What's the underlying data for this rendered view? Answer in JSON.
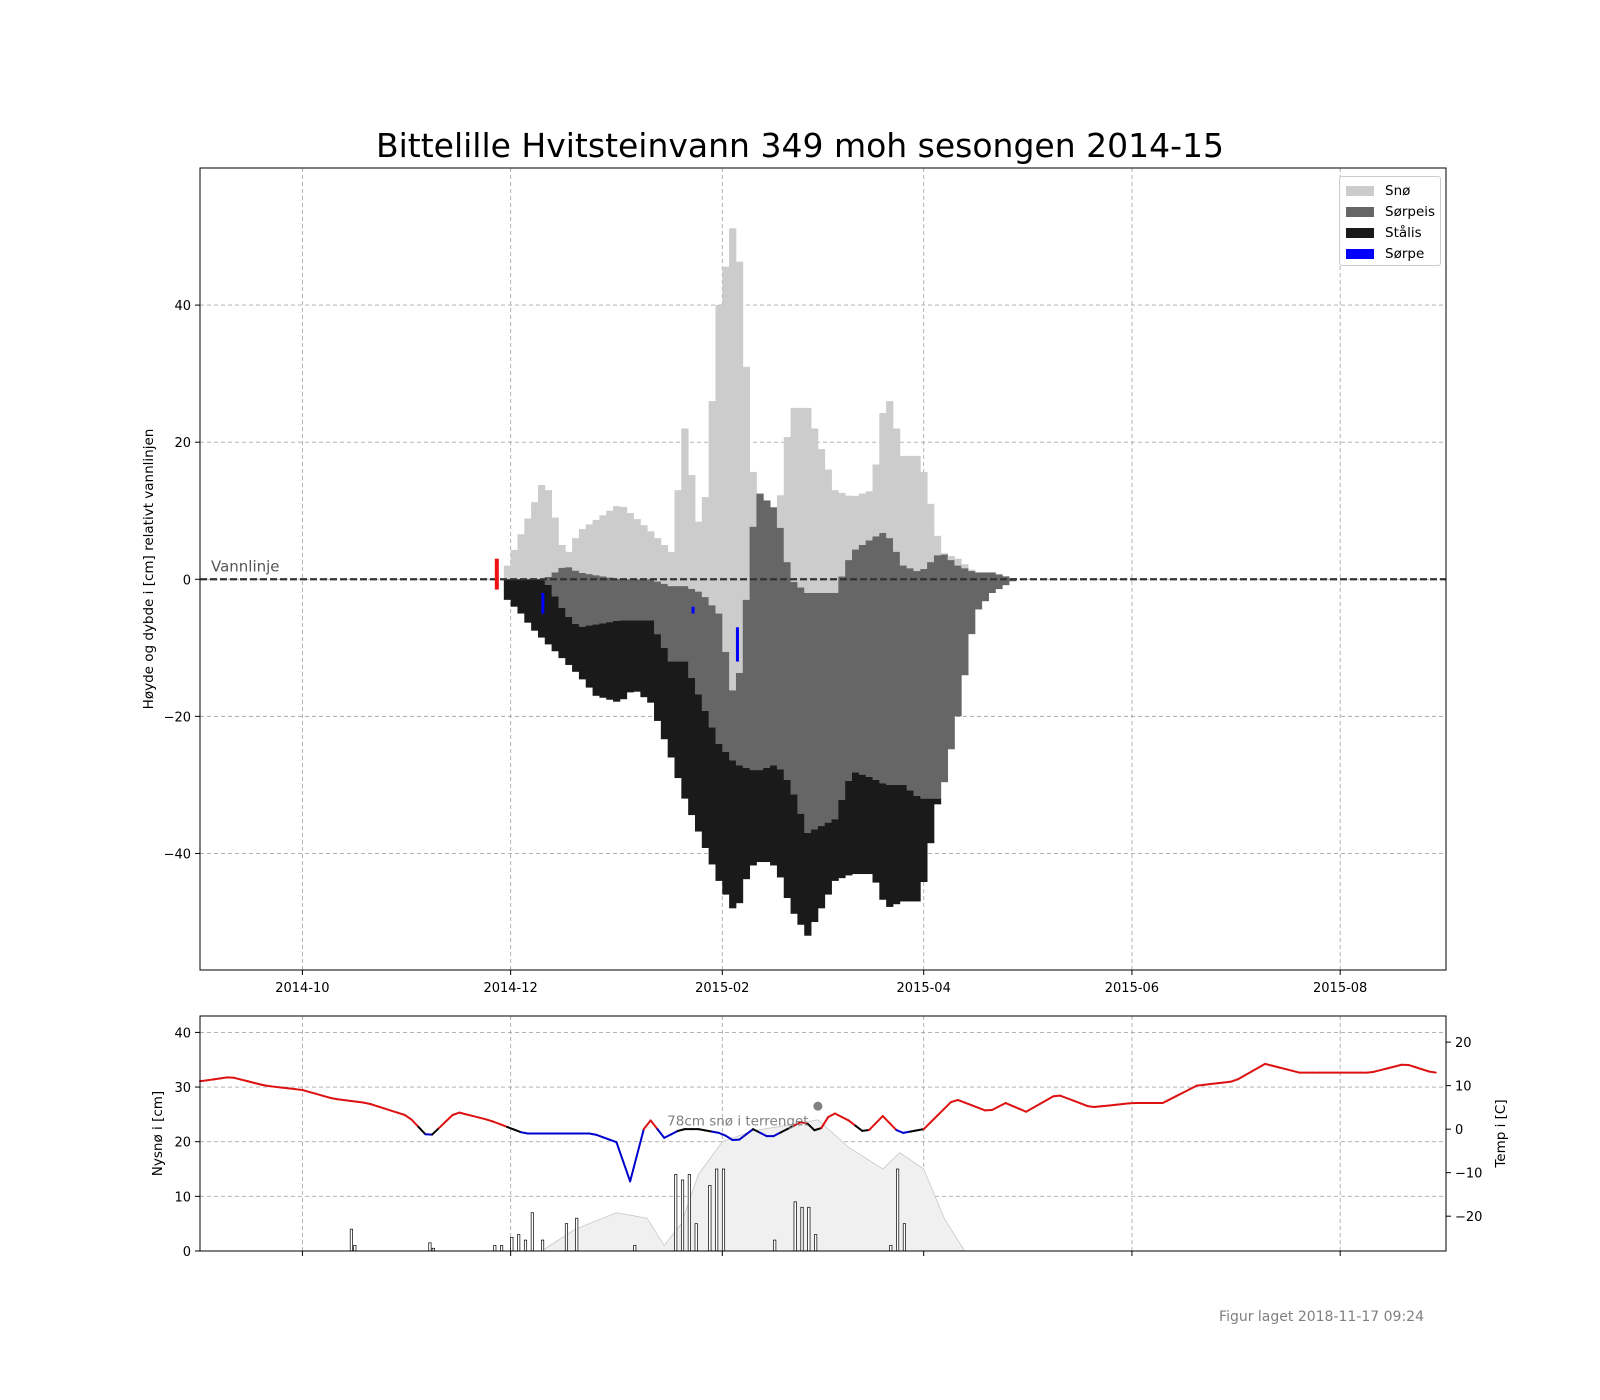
{
  "figure": {
    "title": "Bittelille Hvitsteinvann 349 moh sesongen 2014-15",
    "footer": "Figur laget 2018-11-17 09:24"
  },
  "colors": {
    "snow": "#cccccc",
    "slush_ice": "#666666",
    "black_ice": "#1a1a1a",
    "slush": "#0000ff",
    "water_line": "#333333",
    "temp_warm": "#dd1111",
    "temp_cold": "#0000cc",
    "temp_neutral": "#000000",
    "snow_depth_fill": "#f0f0f0",
    "grid": "#aaaaaa"
  },
  "chart_data": [
    {
      "type": "area",
      "title": "Bittelille Hvitsteinvann 349 moh sesongen 2014-15",
      "ylabel": "Høyde og dybde i [cm] relativt vannlinjen",
      "xlim": [
        "2014-09-01",
        "2015-09-01"
      ],
      "ylim": [
        -57,
        60
      ],
      "x_ticks": [
        "2014-10",
        "2014-12",
        "2015-02",
        "2015-04",
        "2015-06",
        "2015-08"
      ],
      "y_ticks": [
        -40,
        -20,
        0,
        20,
        40
      ],
      "grid": true,
      "legend_position": "top-right",
      "legend": [
        "Snø",
        "Sørpeis",
        "Stålis",
        "Sørpe"
      ],
      "annotation": "Vannlinje",
      "water_line": {
        "y": 0,
        "from": "2014-09-01",
        "to": "2015-09-01"
      },
      "series": [
        {
          "name": "Snø",
          "x": [
            "2014-11-29",
            "2014-12-06",
            "2014-12-10",
            "2014-12-16",
            "2014-12-20",
            "2015-01-01",
            "2015-01-10",
            "2015-01-16",
            "2015-01-20",
            "2015-01-25",
            "2015-01-30",
            "2015-02-04",
            "2015-02-10",
            "2015-02-16",
            "2015-02-20",
            "2015-02-25",
            "2015-03-05",
            "2015-03-10",
            "2015-03-16",
            "2015-03-20",
            "2015-03-25",
            "2015-03-30",
            "2015-04-05",
            "2015-04-10",
            "2015-04-15",
            "2015-04-20",
            "2015-04-27"
          ],
          "top": [
            2,
            10,
            15,
            3,
            7,
            11,
            7,
            4,
            22,
            5,
            40,
            54,
            8,
            8,
            25,
            25,
            13,
            12,
            13,
            28,
            18,
            18,
            4,
            3,
            1,
            1,
            0
          ]
        },
        {
          "name": "Sørpeis",
          "x": [
            "2014-11-29",
            "2014-12-06",
            "2014-12-10",
            "2014-12-16",
            "2014-12-20",
            "2015-01-01",
            "2015-01-10",
            "2015-01-16",
            "2015-01-20",
            "2015-01-25",
            "2015-01-30",
            "2015-02-04",
            "2015-02-10",
            "2015-02-16",
            "2015-02-20",
            "2015-02-25",
            "2015-03-05",
            "2015-03-10",
            "2015-03-16",
            "2015-03-20",
            "2015-03-25",
            "2015-03-30",
            "2015-04-05",
            "2015-04-10",
            "2015-04-15",
            "2015-04-20",
            "2015-04-27"
          ],
          "top": [
            0,
            0,
            0,
            2,
            1,
            0,
            0,
            -1,
            -1,
            -2,
            -5,
            -19,
            13,
            10,
            0,
            -2,
            -2,
            4,
            6,
            7,
            2,
            1,
            4,
            2,
            1,
            1,
            0
          ],
          "bottom": [
            0,
            0,
            0,
            -5,
            -7,
            -6,
            -6,
            -12,
            -12,
            -18,
            -24,
            -27,
            -28,
            -27,
            -30,
            -37,
            -35,
            -28,
            -29,
            -30,
            -30,
            -32,
            -32,
            -20,
            -5,
            -2,
            0
          ]
        },
        {
          "name": "Stålis",
          "x": [
            "2014-11-29",
            "2014-12-03",
            "2014-12-06",
            "2014-12-10",
            "2014-12-16",
            "2014-12-20",
            "2014-12-25",
            "2015-01-01",
            "2015-01-05",
            "2015-01-10",
            "2015-01-16",
            "2015-01-20",
            "2015-01-25",
            "2015-01-30",
            "2015-02-04",
            "2015-02-08",
            "2015-02-12",
            "2015-02-16",
            "2015-02-20",
            "2015-02-25",
            "2015-03-01",
            "2015-03-05",
            "2015-03-10",
            "2015-03-16",
            "2015-03-20",
            "2015-03-25",
            "2015-03-30",
            "2015-04-05",
            "2015-04-10",
            "2015-04-15",
            "2015-04-20",
            "2015-04-27"
          ],
          "bottom": [
            -3,
            -5,
            -7,
            -9,
            -12,
            -14,
            -17,
            -18,
            -16,
            -18,
            -26,
            -32,
            -38,
            -44,
            -49,
            -42,
            -41,
            -42,
            -48,
            -52,
            -48,
            -44,
            -43,
            -43,
            -48,
            -47,
            -47,
            -30,
            -13,
            -3,
            -1,
            0
          ]
        },
        {
          "name": "Sørpe",
          "x": [
            "2014-12-10",
            "2015-01-23",
            "2015-02-05"
          ],
          "top": [
            -2,
            -4,
            -7
          ],
          "bottom": [
            -5,
            -5,
            -12
          ]
        }
      ]
    },
    {
      "type": "bar",
      "ylabel": "Nysnø i [cm]",
      "ylabel_right": "Temp i [C]",
      "xlim": [
        "2014-09-01",
        "2015-09-01"
      ],
      "ylim": [
        0,
        43
      ],
      "ylim_right": [
        -28,
        26
      ],
      "y_ticks": [
        0,
        10,
        20,
        30,
        40
      ],
      "y_ticks_right": [
        -20,
        -10,
        0,
        10,
        20
      ],
      "grid": true,
      "annotation": "78cm snø i terrenget",
      "annotation_date": "2015-03-01",
      "new_snow": {
        "x": [
          "2014-10-15",
          "2014-10-16",
          "2014-11-07",
          "2014-11-08",
          "2014-11-26",
          "2014-11-28",
          "2014-12-01",
          "2014-12-03",
          "2014-12-05",
          "2014-12-07",
          "2014-12-10",
          "2014-12-17",
          "2014-12-20",
          "2015-01-06",
          "2015-01-18",
          "2015-01-20",
          "2015-01-22",
          "2015-01-24",
          "2015-01-28",
          "2015-01-30",
          "2015-02-01",
          "2015-02-16",
          "2015-02-22",
          "2015-02-24",
          "2015-02-26",
          "2015-02-28",
          "2015-03-22",
          "2015-03-24",
          "2015-03-26"
        ],
        "values": [
          4,
          1,
          1.5,
          0.5,
          1,
          1,
          2.5,
          3,
          2,
          7,
          2,
          5,
          6,
          1,
          14,
          13,
          14,
          5,
          12,
          15,
          15,
          2,
          9,
          8,
          8,
          3,
          1,
          15,
          5
        ]
      },
      "snow_depth": {
        "x": [
          "2014-12-10",
          "2014-12-20",
          "2015-01-01",
          "2015-01-10",
          "2015-01-15",
          "2015-01-20",
          "2015-01-25",
          "2015-02-01",
          "2015-02-10",
          "2015-02-20",
          "2015-03-01",
          "2015-03-10",
          "2015-03-20",
          "2015-03-25",
          "2015-04-01",
          "2015-04-07",
          "2015-04-13"
        ],
        "values": [
          0,
          4,
          7,
          6,
          1,
          5,
          14,
          20,
          22,
          23,
          24,
          19,
          15,
          18,
          15,
          6,
          0
        ]
      },
      "temperature": {
        "x": [
          "2014-09-01",
          "2014-09-10",
          "2014-09-20",
          "2014-10-01",
          "2014-10-10",
          "2014-10-20",
          "2014-11-01",
          "2014-11-07",
          "2014-11-15",
          "2014-11-25",
          "2014-12-05",
          "2014-12-15",
          "2014-12-25",
          "2015-01-01",
          "2015-01-05",
          "2015-01-10",
          "2015-01-15",
          "2015-01-20",
          "2015-01-25",
          "2015-02-01",
          "2015-02-05",
          "2015-02-10",
          "2015-02-15",
          "2015-02-20",
          "2015-02-25",
          "2015-03-01",
          "2015-03-05",
          "2015-03-10",
          "2015-03-15",
          "2015-03-20",
          "2015-03-25",
          "2015-04-01",
          "2015-04-10",
          "2015-04-20",
          "2015-04-25",
          "2015-05-01",
          "2015-05-10",
          "2015-05-20",
          "2015-06-01",
          "2015-06-10",
          "2015-06-20",
          "2015-07-01",
          "2015-07-10",
          "2015-07-20",
          "2015-08-01",
          "2015-08-10",
          "2015-08-20",
          "2015-08-28"
        ],
        "values": [
          11,
          12,
          10,
          9,
          7,
          6,
          3,
          -2,
          4,
          2,
          -1,
          -1,
          -1,
          -3,
          -12,
          3,
          -2,
          0,
          0,
          -1,
          -3,
          0,
          -2,
          0,
          2,
          -1,
          4,
          2,
          -1,
          3,
          -1,
          0,
          7,
          4,
          6,
          4,
          8,
          5,
          6,
          6,
          10,
          11,
          15,
          13,
          13,
          13,
          15,
          13
        ]
      }
    }
  ]
}
